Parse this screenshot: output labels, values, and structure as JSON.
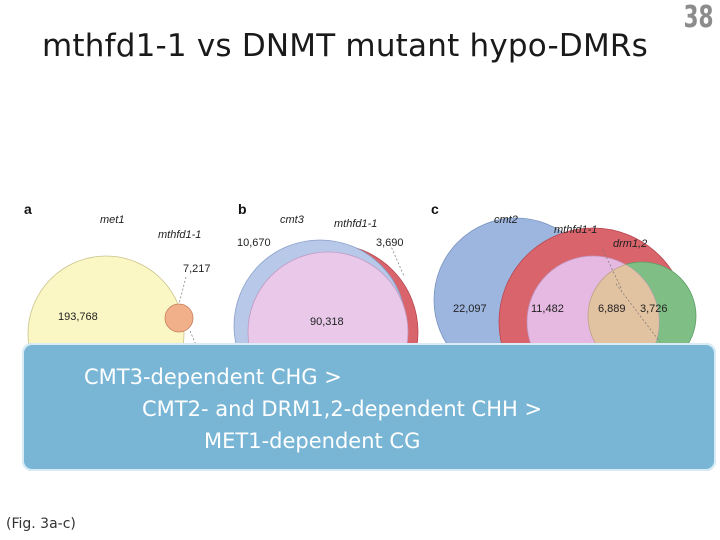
{
  "slide": {
    "title": "mthfd1-1 vs DNMT mutant hypo-DMRs",
    "number": "38",
    "caption": "(Fig. 3a-c)"
  },
  "figure": {
    "panels": [
      {
        "letter": "a",
        "sets": [
          "met1",
          "mthfd1-1"
        ],
        "counts": [
          "193,768",
          "7,217"
        ]
      },
      {
        "letter": "b",
        "sets": [
          "cmt3",
          "mthfd1-1"
        ],
        "counts": [
          "10,670",
          "3,690",
          "90,318"
        ]
      },
      {
        "letter": "c",
        "sets": [
          "cmt2",
          "mthfd1-1",
          "drm1,2"
        ],
        "counts": [
          "22,097",
          "11,482",
          "6,889",
          "3,726"
        ]
      }
    ],
    "colors": {
      "met1": "#fbf7c4",
      "mthfd1_small": "#f2b08a",
      "cmt3": "#b7c8e8",
      "mthfd1_b": "#e9c8ea",
      "red_ring": "#d9646b",
      "cmt2": "#9db6e0",
      "mthfd1_c": "#e6b9e3",
      "drm": "#7fbf85"
    }
  },
  "overlay": {
    "lines": [
      "CMT3-dependent CHG >",
      "CMT2- and DRM1,2-dependent CHH >",
      "MET1-dependent CG"
    ],
    "color": "#79b6d6"
  }
}
